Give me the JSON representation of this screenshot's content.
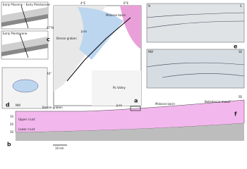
{
  "panels": {
    "a": "a",
    "b": "b",
    "c": "c",
    "d": "d",
    "e": "e",
    "f": "f"
  },
  "map": {
    "lon1": "4°E",
    "lon2": "6°E",
    "lat1": "47°N",
    "lat2": "46°",
    "places": [
      "Bresse graben",
      "Jura",
      "Molasse basin",
      "Po Valley"
    ]
  },
  "section_c": {
    "top": "Early Pliocene – Early Pleistocene",
    "bottom": "Early Pleistocene"
  },
  "seismic": {
    "top_left": "N",
    "top_right": "S",
    "bottom_left": "NW",
    "bottom_right": "SE"
  },
  "cross_section": {
    "left": "NW",
    "right": "SE",
    "upper": "Upper crust",
    "lower": "Lower crust",
    "depths": [
      "10",
      "20",
      "30"
    ],
    "scale": "10 km",
    "labels": [
      "Bresse graben",
      "Jura",
      "Molasse basin",
      "Belledonne massif"
    ]
  }
}
